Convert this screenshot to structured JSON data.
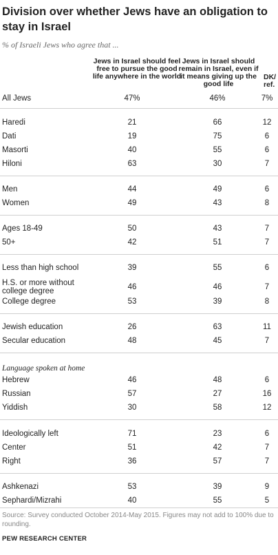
{
  "title": "Division over whether Jews have an obligation to stay in Israel",
  "subtitle": "% of Israeli Jews who agree that ...",
  "columns": [
    "Jews in Israel should feel free to pursue the good life anywhere in the world",
    "Jews in Israel should remain in Israel, even if it means giving up the good life",
    "DK/ ref."
  ],
  "section_label": "Language spoken at home",
  "source": "Source: Survey conducted October 2014-May 2015. Figures may not add to 100% due to rounding.",
  "brand": "PEW RESEARCH CENTER",
  "chart_data": {
    "type": "table",
    "title": "Division over whether Jews have an obligation to stay in Israel",
    "subtitle": "% of Israeli Jews who agree that ...",
    "columns": [
      "Jews in Israel should feel free to pursue the good life anywhere in the world",
      "Jews in Israel should remain in Israel, even if it means giving up the good life",
      "DK/ ref."
    ],
    "rows": [
      {
        "label": "All Jews",
        "values": [
          "47%",
          "46%",
          "7%"
        ]
      },
      {
        "label": "Haredi",
        "values": [
          "21",
          "66",
          "12"
        ]
      },
      {
        "label": "Dati",
        "values": [
          "19",
          "75",
          "6"
        ]
      },
      {
        "label": "Masorti",
        "values": [
          "40",
          "55",
          "6"
        ]
      },
      {
        "label": "Hiloni",
        "values": [
          "63",
          "30",
          "7"
        ]
      },
      {
        "label": "Men",
        "values": [
          "44",
          "49",
          "6"
        ]
      },
      {
        "label": "Women",
        "values": [
          "49",
          "43",
          "8"
        ]
      },
      {
        "label": "Ages 18-49",
        "values": [
          "50",
          "43",
          "7"
        ]
      },
      {
        "label": "50+",
        "values": [
          "42",
          "51",
          "7"
        ]
      },
      {
        "label": "Less than high school",
        "values": [
          "39",
          "55",
          "6"
        ]
      },
      {
        "label": "H.S. or more without college degree",
        "values": [
          "46",
          "46",
          "7"
        ]
      },
      {
        "label": "College degree",
        "values": [
          "53",
          "39",
          "8"
        ]
      },
      {
        "label": "Jewish education",
        "values": [
          "26",
          "63",
          "11"
        ]
      },
      {
        "label": "Secular education",
        "values": [
          "48",
          "45",
          "7"
        ]
      },
      {
        "label": "Hebrew",
        "values": [
          "46",
          "48",
          "6"
        ]
      },
      {
        "label": "Russian",
        "values": [
          "57",
          "27",
          "16"
        ]
      },
      {
        "label": "Yiddish",
        "values": [
          "30",
          "58",
          "12"
        ]
      },
      {
        "label": "Ideologically left",
        "values": [
          "71",
          "23",
          "6"
        ]
      },
      {
        "label": "Center",
        "values": [
          "51",
          "42",
          "7"
        ]
      },
      {
        "label": "Right",
        "values": [
          "36",
          "57",
          "7"
        ]
      },
      {
        "label": "Ashkenazi",
        "values": [
          "53",
          "39",
          "9"
        ]
      },
      {
        "label": "Sephardi/Mizrahi",
        "values": [
          "40",
          "55",
          "5"
        ]
      }
    ]
  }
}
